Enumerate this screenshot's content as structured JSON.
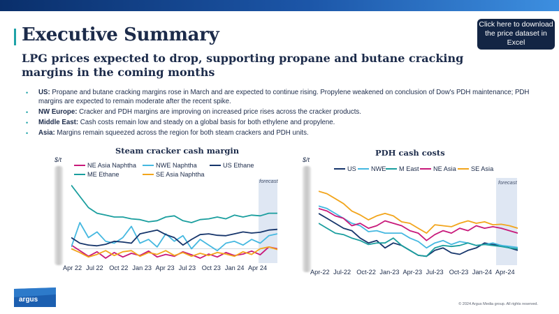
{
  "header": {
    "title": "Executive Summary",
    "subtitle": "LPG prices expected to drop, supporting propane and butane cracking margins in the coming months"
  },
  "download_button": {
    "label": "Click here to download the price dataset in Excel"
  },
  "bullets": [
    {
      "label": "US:",
      "text": " Propane and butane cracking margins rose in March and are expected to continue rising. Propylene weakened on conclusion of Dow's PDH maintenance; PDH margins are expected to remain moderate after the recent spike."
    },
    {
      "label": "NW Europe:",
      "text": " Cracker and PDH margins are improving on increased price rises across the cracker products."
    },
    {
      "label": "Middle East:",
      "text": " Cash costs remain low and steady on a global basis for both ethylene and propylene."
    },
    {
      "label": "Asia:",
      "text": " Margins remain squeezed across the region for both steam crackers and PDH units."
    }
  ],
  "footer": {
    "brand": "argus",
    "copyright": "© 2024 Argus Media group. All rights reserved."
  },
  "colors": {
    "brand_navy": "#1c2b4a",
    "accent_teal": "#1fa3a8",
    "button_bg": "#132544"
  },
  "chart_data": [
    {
      "type": "line",
      "title": "Steam cracker cash margin",
      "ylabel": "$/t",
      "forecast_label": "forecast",
      "x_ticks": [
        "Apr 22",
        "Jul 22",
        "Oct 22",
        "Jan 23",
        "Apr 23",
        "Jul 23",
        "Oct 23",
        "Jan 24",
        "Apr 24"
      ],
      "series": [
        {
          "name": "NE Asia Naphtha",
          "color": "#c8197a",
          "values": [
            10,
            -5,
            -20,
            -8,
            -25,
            -10,
            -22,
            -12,
            -18,
            -6,
            -22,
            -15,
            -20,
            -8,
            -16,
            -25,
            -14,
            -22,
            -10,
            -18,
            -14,
            -6,
            -16,
            5,
            0
          ]
        },
        {
          "name": "NWE Naphtha",
          "color": "#45b8e0",
          "values": [
            5,
            70,
            30,
            45,
            20,
            15,
            30,
            60,
            15,
            25,
            5,
            40,
            20,
            35,
            0,
            25,
            10,
            -5,
            15,
            20,
            10,
            25,
            15,
            35,
            40
          ]
        },
        {
          "name": "US Ethane",
          "color": "#16356b",
          "values": [
            30,
            15,
            10,
            8,
            12,
            20,
            18,
            15,
            40,
            45,
            50,
            38,
            30,
            10,
            25,
            38,
            40,
            36,
            35,
            40,
            45,
            42,
            44,
            50,
            52
          ]
        },
        {
          "name": "ME Ethane",
          "color": "#1a9e9e",
          "values": [
            170,
            140,
            110,
            95,
            90,
            85,
            85,
            80,
            78,
            72,
            75,
            85,
            88,
            75,
            70,
            78,
            80,
            85,
            80,
            90,
            85,
            90,
            88,
            95,
            95
          ]
        },
        {
          "name": "SE Asia Naphtha",
          "color": "#f2a51c",
          "values": [
            0,
            -10,
            -22,
            -15,
            -5,
            -18,
            -8,
            -5,
            -20,
            -10,
            -15,
            -5,
            -18,
            -10,
            -20,
            -12,
            -18,
            -10,
            -14,
            -20,
            -8,
            -15,
            0,
            5,
            -2
          ]
        }
      ]
    },
    {
      "type": "line",
      "title": "PDH cash costs",
      "ylabel": "$/t",
      "forecast_label": "forecast",
      "x_ticks": [
        "Apr-22",
        "Jul-22",
        "Oct-22",
        "Jan-23",
        "Apr-23",
        "Jul-23",
        "Oct-23",
        "Jan-24",
        "Apr-24"
      ],
      "series": [
        {
          "name": "US",
          "color": "#16356b",
          "values": [
            235,
            225,
            215,
            205,
            200,
            185,
            175,
            180,
            165,
            175,
            170,
            160,
            150,
            148,
            160,
            165,
            155,
            152,
            160,
            165,
            175,
            172,
            170,
            165,
            160
          ]
        },
        {
          "name": "NWE",
          "color": "#45b8e0",
          "values": [
            250,
            245,
            235,
            225,
            215,
            210,
            198,
            200,
            195,
            195,
            195,
            185,
            178,
            165,
            175,
            180,
            172,
            178,
            175,
            170,
            172,
            175,
            170,
            168,
            166
          ]
        },
        {
          "name": "M East",
          "color": "#1a9e9e",
          "values": [
            215,
            205,
            195,
            192,
            185,
            180,
            172,
            175,
            175,
            185,
            170,
            160,
            150,
            148,
            165,
            170,
            168,
            170,
            175,
            170,
            172,
            170,
            168,
            165,
            163
          ]
        },
        {
          "name": "NE Asia",
          "color": "#c8197a",
          "values": [
            245,
            240,
            230,
            225,
            210,
            215,
            205,
            210,
            220,
            215,
            210,
            200,
            195,
            180,
            192,
            200,
            195,
            205,
            200,
            210,
            205,
            208,
            205,
            200,
            195
          ]
        },
        {
          "name": "SE Asia",
          "color": "#f2a51c",
          "values": [
            280,
            275,
            265,
            255,
            240,
            232,
            222,
            230,
            235,
            230,
            218,
            215,
            205,
            195,
            212,
            210,
            208,
            215,
            220,
            215,
            218,
            212,
            213,
            210,
            205
          ]
        }
      ]
    }
  ]
}
